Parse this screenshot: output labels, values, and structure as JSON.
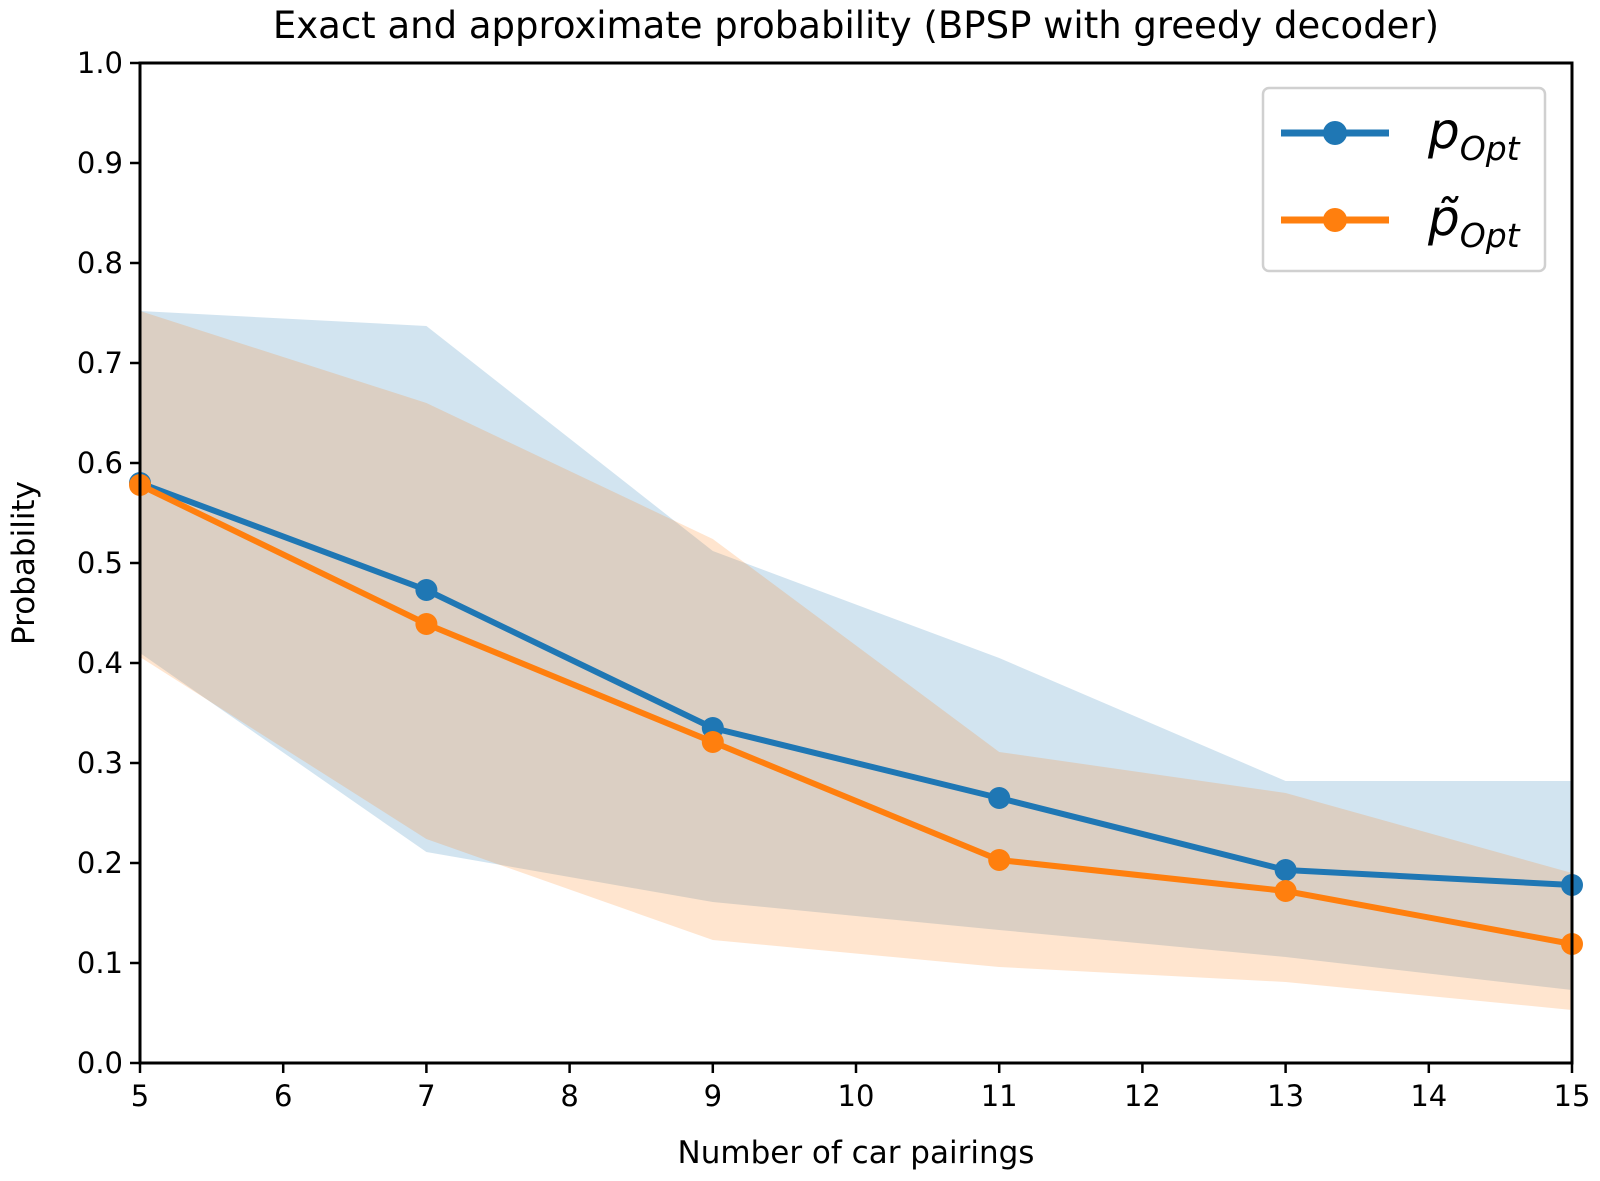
{
  "chart_data": {
    "type": "line",
    "title": "Exact and approximate probability (BPSP with greedy decoder)",
    "xlabel": "Number of car pairings",
    "ylabel": "Probability",
    "xlim": [
      5,
      15
    ],
    "ylim": [
      0.0,
      1.0
    ],
    "x_ticks": [
      "5",
      "6",
      "7",
      "8",
      "9",
      "10",
      "11",
      "12",
      "13",
      "14",
      "15"
    ],
    "y_ticks": [
      "0.0",
      "0.1",
      "0.2",
      "0.3",
      "0.4",
      "0.5",
      "0.6",
      "0.7",
      "0.8",
      "0.9",
      "1.0"
    ],
    "grid": false,
    "legend_position": "top-right",
    "x": [
      5,
      7,
      9,
      11,
      13,
      15
    ],
    "series": [
      {
        "name": "p_Opt",
        "legend_main": "p",
        "legend_sub": "Opt",
        "color": "#1f77b4",
        "band_color": "#c6dbed",
        "values": [
          0.58,
          0.473,
          0.335,
          0.265,
          0.193,
          0.178
        ],
        "band_upper": [
          0.752,
          0.737,
          0.512,
          0.405,
          0.282,
          0.282
        ],
        "band_lower": [
          0.41,
          0.211,
          0.161,
          0.133,
          0.106,
          0.073
        ]
      },
      {
        "name": "p̃_Opt",
        "legend_main": "p̃",
        "legend_sub": "Opt",
        "color": "#ff7f0e",
        "band_color": "#ffd9b8",
        "values": [
          0.578,
          0.439,
          0.321,
          0.203,
          0.172,
          0.119
        ],
        "band_upper": [
          0.752,
          0.66,
          0.524,
          0.311,
          0.27,
          0.19
        ],
        "band_lower": [
          0.406,
          0.224,
          0.123,
          0.096,
          0.081,
          0.053
        ]
      }
    ]
  }
}
